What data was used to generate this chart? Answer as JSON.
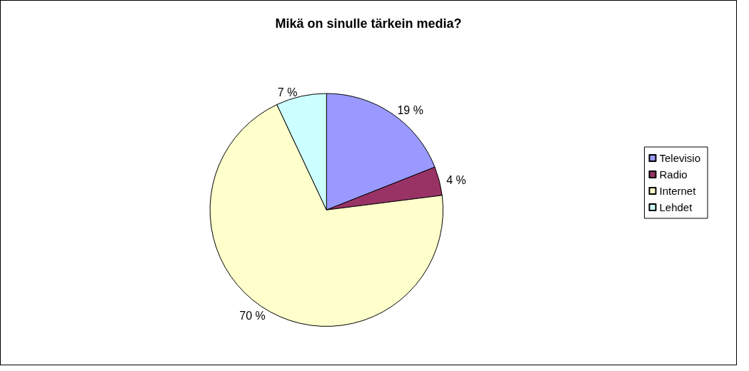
{
  "chart_data": {
    "type": "pie",
    "title": "Mikä on sinulle tärkein media?",
    "categories": [
      "Televisio",
      "Radio",
      "Internet",
      "Lehdet"
    ],
    "values": [
      19,
      4,
      70,
      7
    ],
    "value_labels": [
      "19 %",
      "4 %",
      "70 %",
      "7 %"
    ],
    "colors": [
      "#9999ff",
      "#993366",
      "#ffffcc",
      "#ccffff"
    ],
    "legend": "right"
  }
}
